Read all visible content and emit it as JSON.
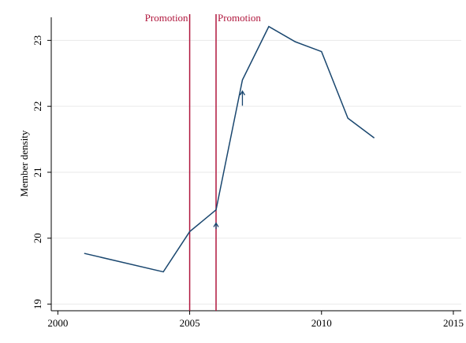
{
  "chart_data": {
    "type": "line",
    "y_label": "Member density",
    "x": [
      2001,
      2004,
      2005,
      2006,
      2007,
      2008,
      2009,
      2010,
      2011,
      2012
    ],
    "values": [
      19.77,
      19.49,
      20.1,
      20.43,
      22.4,
      23.21,
      22.98,
      22.83,
      21.82,
      21.52
    ],
    "color": "#1a476f",
    "xlim": [
      1999.75,
      2015.3
    ],
    "xticks": [
      2000,
      2005,
      2010,
      2015
    ],
    "ylim": [
      18.9,
      23.35
    ],
    "yticks": [
      19,
      20,
      21,
      22,
      23
    ],
    "grid": true,
    "vlines": [
      {
        "x": 2005,
        "label": "Promotion"
      },
      {
        "x": 2006,
        "label": "Promotion"
      }
    ],
    "vline_color": "#b0173d",
    "arrows": [
      {
        "x": 2006,
        "y_from": 20.14,
        "y_to": 20.23
      },
      {
        "x": 2007,
        "y_from": 22.01,
        "y_to": 22.23
      }
    ]
  }
}
